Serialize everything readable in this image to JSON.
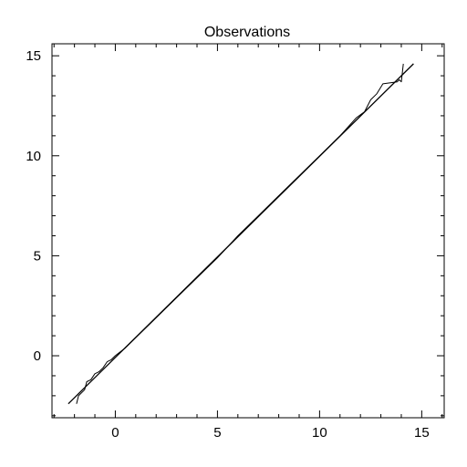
{
  "chart_data": {
    "type": "line",
    "title": "Observations",
    "xlabel": "",
    "ylabel": "",
    "xlim": [
      -3.1,
      16.1
    ],
    "ylim": [
      -3.1,
      15.6
    ],
    "xticks": [
      0,
      5,
      10,
      15
    ],
    "yticks": [
      0,
      5,
      10,
      15
    ],
    "x_minor_step": 1,
    "y_minor_step": 1,
    "grid": false,
    "series": [
      {
        "style": "reference-line",
        "x": [
          -2.3,
          14.6
        ],
        "y": [
          -2.4,
          14.6
        ]
      },
      {
        "style": "observed",
        "x": [
          -1.9,
          -1.8,
          -1.5,
          -1.4,
          -1.2,
          -1.0,
          -0.8,
          -0.6,
          -0.4,
          -0.2,
          0.0,
          0.5,
          1.0,
          2.0,
          3.0,
          4.0,
          5.0,
          6.0,
          7.0,
          8.0,
          9.0,
          10.0,
          11.0,
          11.8,
          12.2,
          12.5,
          12.8,
          13.1,
          13.8,
          13.9,
          14.0,
          14.1
        ],
        "y": [
          -2.4,
          -2.0,
          -1.7,
          -1.3,
          -1.2,
          -0.9,
          -0.8,
          -0.6,
          -0.3,
          -0.2,
          0.0,
          0.4,
          0.9,
          1.9,
          2.9,
          3.9,
          4.9,
          6.0,
          7.0,
          8.0,
          9.0,
          10.0,
          11.0,
          11.9,
          12.2,
          12.8,
          13.1,
          13.6,
          13.7,
          13.8,
          13.7,
          14.6
        ]
      }
    ]
  }
}
